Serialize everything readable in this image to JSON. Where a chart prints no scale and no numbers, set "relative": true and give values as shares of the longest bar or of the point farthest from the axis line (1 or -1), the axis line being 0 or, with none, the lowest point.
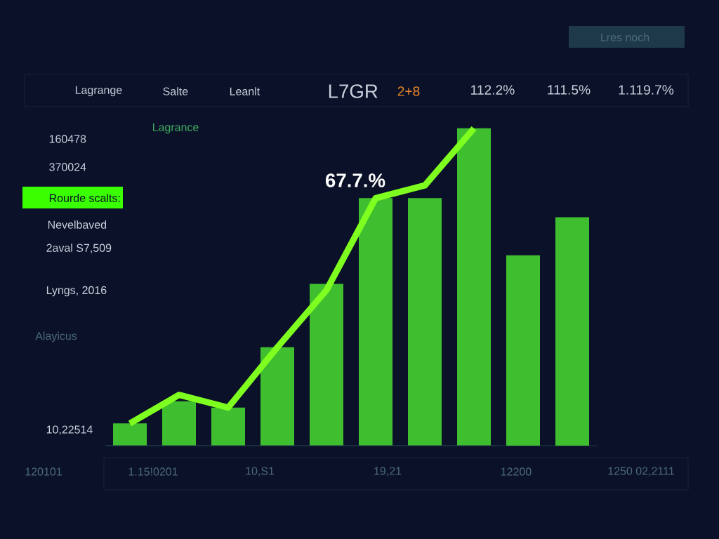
{
  "chart_data": [
    {
      "type": "bar",
      "relative": true,
      "color": "#3fbf2f",
      "categories": [
        null,
        null,
        null,
        null,
        null,
        null,
        null,
        null,
        null,
        null
      ],
      "values": [
        0.07,
        0.14,
        0.12,
        0.31,
        0.51,
        0.78,
        0.78,
        1,
        0.6,
        0.72
      ],
      "annotations": [
        "Lres noch",
        "Lagrange",
        "Salte",
        "Leanlt",
        "L7GR",
        "2+8",
        "112.2%",
        "111.5%",
        "1.119.7%",
        "160478",
        "370024",
        "Rourde scalts:",
        "Nevelbaved",
        "2aval S7,509",
        "Lyngs, 2016",
        "Alayicus",
        "10,22514",
        "Lagrance",
        "67.7.%",
        "120101",
        "1.15!0201",
        "10,S1",
        "19,21",
        "12200",
        "1250 02,2111"
      ]
    },
    {
      "type": "line",
      "relative": true,
      "color": "#7fff1f",
      "categories": [
        null,
        null,
        null,
        null,
        null,
        null,
        null,
        null
      ],
      "values": [
        0.07,
        0.16,
        0.12,
        0.31,
        0.49,
        0.78,
        0.82,
        1.0
      ]
    }
  ]
}
